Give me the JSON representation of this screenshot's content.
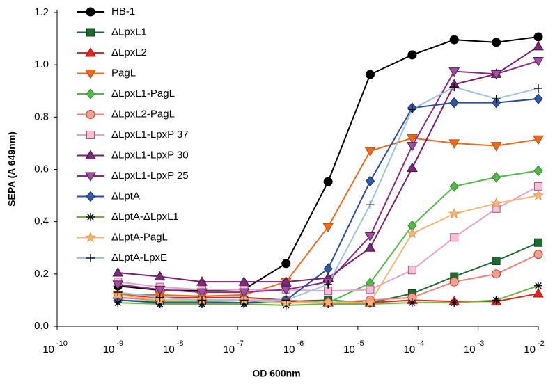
{
  "chart_data": {
    "type": "line",
    "ylabel": "SEPA (A 649nm)",
    "xlabel": "OD 600nm",
    "xscale": "log",
    "xlim": [
      1e-10,
      0.01
    ],
    "xticks": [
      {
        "value": 1e-10,
        "label": "10",
        "exponent": "-10"
      },
      {
        "value": 1e-09,
        "label": "10",
        "exponent": "-9"
      },
      {
        "value": 1e-08,
        "label": "10",
        "exponent": "-8"
      },
      {
        "value": 1e-07,
        "label": "10",
        "exponent": "-7"
      },
      {
        "value": 1e-06,
        "label": "10",
        "exponent": "-6"
      },
      {
        "value": 1e-05,
        "label": "10",
        "exponent": "-5"
      },
      {
        "value": 0.0001,
        "label": "10",
        "exponent": "-4"
      },
      {
        "value": 0.001,
        "label": "10",
        "exponent": "-3"
      },
      {
        "value": 0.01,
        "label": "10",
        "exponent": "-2"
      }
    ],
    "ylim": [
      0,
      1.2
    ],
    "yticks": [
      {
        "value": 0,
        "label": "0.0"
      },
      0.2,
      0.4,
      0.6,
      0.8,
      {
        "value": 1,
        "label": "1.0"
      },
      1.2
    ],
    "legend": "upper left",
    "x": [
      1.024e-09,
      5.12e-09,
      2.56e-08,
      1.28e-07,
      6.4e-07,
      3.2e-06,
      1.6e-05,
      8e-05,
      0.0004,
      0.002,
      0.01
    ],
    "series": [
      {
        "name": "HB-1",
        "color": "#000000",
        "marker": "circle",
        "marker_fill": "#000000",
        "marker_edge": "#000000",
        "values": [
          0.154,
          0.138,
          0.136,
          0.141,
          0.24,
          0.553,
          0.963,
          1.038,
          1.096,
          1.086,
          1.107
        ]
      },
      {
        "name": "ΔLpxL1",
        "color": "#1e6b30",
        "marker": "square",
        "marker_fill": "#1e6b30",
        "marker_edge": "#14491f",
        "values": [
          0.11,
          0.1,
          0.1,
          0.1,
          0.095,
          0.1,
          0.09,
          0.125,
          0.19,
          0.25,
          0.32
        ]
      },
      {
        "name": "ΔLpxL2",
        "color": "#e8231b",
        "marker": "triangle",
        "marker_fill": "#e8231b",
        "marker_edge": "#b01a14",
        "values": [
          0.12,
          0.11,
          0.11,
          0.11,
          0.1,
          0.09,
          0.09,
          0.1,
          0.095,
          0.095,
          0.125
        ]
      },
      {
        "name": "PagL",
        "color": "#ec6a1d",
        "marker": "triangle-down",
        "marker_fill": "#ec6a1d",
        "marker_edge": "#b84f12",
        "values": [
          0.12,
          0.12,
          0.115,
          0.12,
          0.17,
          0.38,
          0.67,
          0.72,
          0.7,
          0.69,
          0.715
        ]
      },
      {
        "name": "ΔLpxL1-PagL",
        "color": "#52b848",
        "marker": "diamond",
        "marker_fill": "#52b848",
        "marker_edge": "#3a8a33",
        "values": [
          0.1,
          0.095,
          0.095,
          0.09,
          0.09,
          0.09,
          0.165,
          0.385,
          0.535,
          0.57,
          0.595
        ]
      },
      {
        "name": "ΔLpxL2-PagL",
        "color": "#e8837a",
        "marker": "circle",
        "marker_fill": "#f4a08e",
        "marker_edge": "#c0392b",
        "values": [
          0.11,
          0.1,
          0.1,
          0.1,
          0.1,
          0.09,
          0.1,
          0.11,
          0.17,
          0.2,
          0.275
        ]
      },
      {
        "name": "ΔLpxL1-LpxP 37",
        "color": "#e8a3c8",
        "marker": "square",
        "marker_fill": "#f5c0d8",
        "marker_edge": "#b5557f",
        "values": [
          0.17,
          0.15,
          0.14,
          0.14,
          0.14,
          0.135,
          0.14,
          0.215,
          0.34,
          0.45,
          0.535
        ]
      },
      {
        "name": "ΔLpxL1-LpxP 30",
        "color": "#7a1f6e",
        "marker": "triangle",
        "marker_fill": "#7a2b7a",
        "marker_edge": "#4a1046",
        "values": [
          0.205,
          0.19,
          0.17,
          0.17,
          0.17,
          0.185,
          0.3,
          0.605,
          0.925,
          0.965,
          1.07
        ]
      },
      {
        "name": "ΔLpxL1-LpxP 25",
        "color": "#8a2a85",
        "marker": "triangle-down",
        "marker_fill": "#a050a0",
        "marker_edge": "#5a1a56",
        "values": [
          0.16,
          0.14,
          0.13,
          0.13,
          0.14,
          0.17,
          0.345,
          0.69,
          0.975,
          0.965,
          1.015
        ]
      },
      {
        "name": "ΔLptA",
        "color": "#2a4c9a",
        "marker": "diamond",
        "marker_fill": "#2f5aa8",
        "marker_edge": "#1a2f60",
        "values": [
          0.1,
          0.09,
          0.09,
          0.09,
          0.1,
          0.22,
          0.555,
          0.835,
          0.855,
          0.855,
          0.87
        ]
      },
      {
        "name": "ΔLptA-ΔLpxL1",
        "color": "#6bb33e",
        "marker": "asterisk",
        "marker_fill": "#000000",
        "marker_edge": "#000000",
        "values": [
          0.09,
          0.085,
          0.085,
          0.085,
          0.08,
          0.085,
          0.085,
          0.09,
          0.09,
          0.1,
          0.155
        ]
      },
      {
        "name": "ΔLptA-PagL",
        "color": "#f6b878",
        "marker": "star",
        "marker_fill": "#f6b878",
        "marker_edge": "#e09a50",
        "values": [
          0.12,
          0.1,
          0.1,
          0.1,
          0.09,
          0.09,
          0.09,
          0.355,
          0.43,
          0.47,
          0.5
        ]
      },
      {
        "name": "ΔLptA-LpxE",
        "color": "#9cc3e6",
        "marker": "plus",
        "marker_fill": "#000000",
        "marker_edge": "#000000",
        "values": [
          0.13,
          0.11,
          0.1,
          0.1,
          0.1,
          0.16,
          0.465,
          0.83,
          0.915,
          0.87,
          0.91
        ]
      }
    ]
  }
}
